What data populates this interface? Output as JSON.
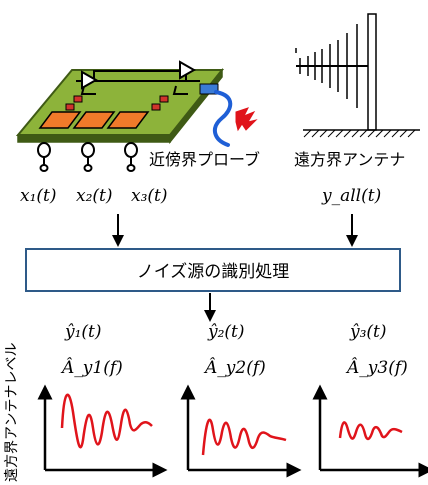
{
  "labels": {
    "near_probe": "近傍界プローブ",
    "far_antenna": "遠方界アンテナ",
    "process_box": "ノイズ源の識別処理",
    "y_axis": "遠方界アンテナレベル"
  },
  "inputs": {
    "x1": "x₁(t)",
    "x2": "x₂(t)",
    "x3": "x₃(t)",
    "y_all": "y_all(t)"
  },
  "outputs": [
    {
      "y": "ŷ₁(t)",
      "A": "Â_y1(f)"
    },
    {
      "y": "ŷ₂(t)",
      "A": "Â_y2(f)"
    },
    {
      "y": "ŷ₃(t)",
      "A": "Â_y3(f)"
    }
  ],
  "colors": {
    "pcb": "#8db33a",
    "pcb_edge": "#3f5a15",
    "chip": "#f07a2a",
    "box_stroke": "#2e5a88",
    "cable": "#1f5fd6",
    "signal": "#e0141b"
  }
}
